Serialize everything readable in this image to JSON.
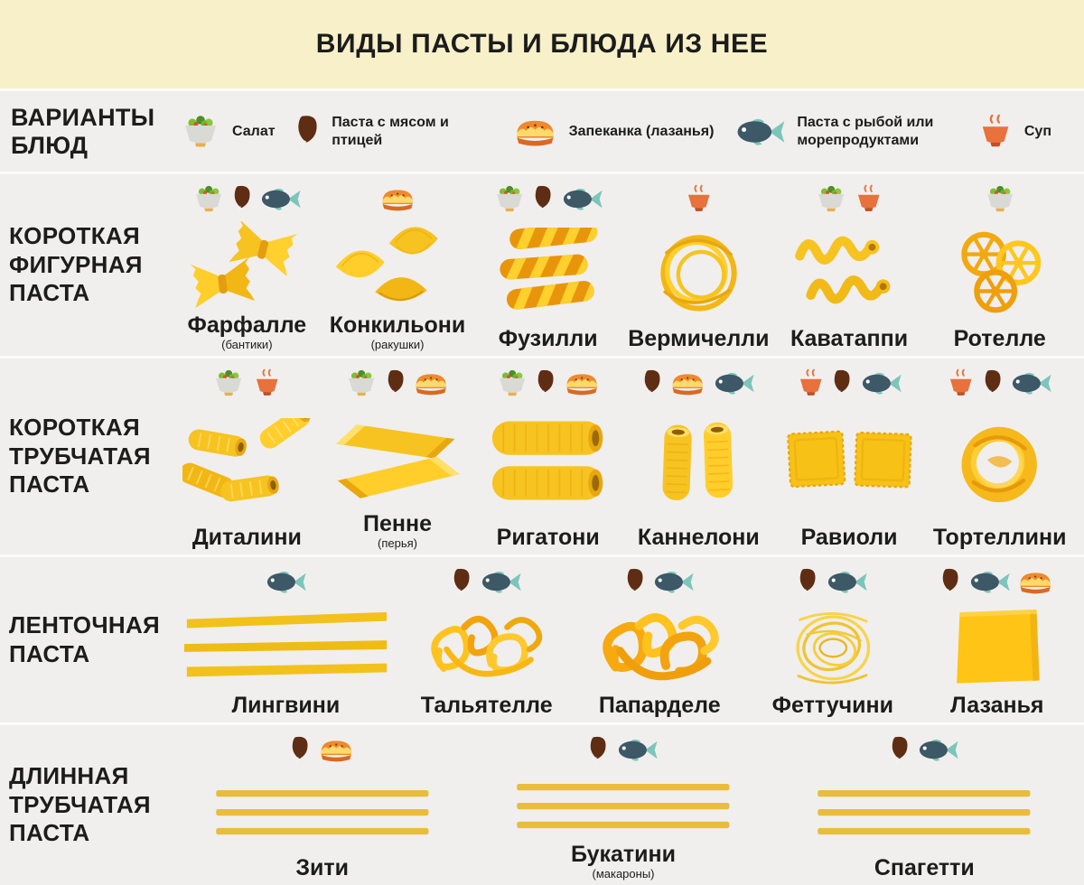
{
  "title": "ВИДЫ ПАСТЫ И БЛЮДА ИЗ НЕЕ",
  "legend": {
    "heading": "ВАРИАНТЫ БЛЮД",
    "items": [
      {
        "icon": "salad",
        "label": "Салат"
      },
      {
        "icon": "chicken",
        "label": "Паста с мясом и птицей"
      },
      {
        "icon": "pie",
        "label": "Запеканка (лазанья)"
      },
      {
        "icon": "fish",
        "label": "Паста с рыбой или морепродуктами"
      },
      {
        "icon": "soup",
        "label": "Суп"
      }
    ]
  },
  "rows": [
    {
      "category": "КОРОТКАЯ ФИГУРНАЯ ПАСТА",
      "items": [
        {
          "name": "Фарфалле",
          "subname": "(бантики)",
          "shape": "farfalle",
          "dishes": [
            "salad",
            "chicken",
            "fish"
          ]
        },
        {
          "name": "Конкильони",
          "subname": "(ракушки)",
          "shape": "conchiglioni",
          "dishes": [
            "pie"
          ]
        },
        {
          "name": "Фузилли",
          "shape": "fusilli",
          "dishes": [
            "salad",
            "chicken",
            "fish"
          ]
        },
        {
          "name": "Вермичелли",
          "shape": "vermicelli",
          "dishes": [
            "soup"
          ]
        },
        {
          "name": "Каватаппи",
          "shape": "cavatappi",
          "dishes": [
            "salad",
            "soup"
          ]
        },
        {
          "name": "Ротелле",
          "shape": "rotelle",
          "dishes": [
            "salad"
          ]
        }
      ]
    },
    {
      "category": "КОРОТКАЯ ТРУБЧАТАЯ ПАСТА",
      "items": [
        {
          "name": "Диталини",
          "shape": "ditalini",
          "dishes": [
            "salad",
            "soup"
          ]
        },
        {
          "name": "Пенне",
          "subname": "(перья)",
          "shape": "penne",
          "dishes": [
            "salad",
            "chicken",
            "pie"
          ]
        },
        {
          "name": "Ригатони",
          "shape": "rigatoni",
          "dishes": [
            "salad",
            "chicken",
            "pie"
          ]
        },
        {
          "name": "Каннелони",
          "shape": "cannelloni",
          "dishes": [
            "chicken",
            "pie",
            "fish"
          ]
        },
        {
          "name": "Равиоли",
          "shape": "ravioli",
          "dishes": [
            "soup",
            "chicken",
            "fish"
          ]
        },
        {
          "name": "Тортеллини",
          "shape": "tortellini",
          "dishes": [
            "soup",
            "chicken",
            "fish"
          ]
        }
      ]
    },
    {
      "category": "ЛЕНТОЧНАЯ ПАСТА",
      "items": [
        {
          "name": "Лингвини",
          "shape": "linguini",
          "dishes": [
            "fish"
          ]
        },
        {
          "name": "Тальятелле",
          "shape": "tagliatelle",
          "dishes": [
            "chicken",
            "fish"
          ]
        },
        {
          "name": "Папарделе",
          "shape": "pappardelle",
          "dishes": [
            "chicken",
            "fish"
          ]
        },
        {
          "name": "Феттучини",
          "shape": "fettuccine",
          "dishes": [
            "chicken",
            "fish"
          ]
        },
        {
          "name": "Лазанья",
          "shape": "lasagna",
          "dishes": [
            "chicken",
            "fish",
            "pie"
          ]
        }
      ]
    },
    {
      "category": "ДЛИННАЯ ТРУБЧАТАЯ ПАСТА",
      "items": [
        {
          "name": "Зити",
          "shape": "strips",
          "dishes": [
            "chicken",
            "pie"
          ]
        },
        {
          "name": "Букатини",
          "subname": "(макароны)",
          "shape": "strips",
          "dishes": [
            "chicken",
            "fish"
          ]
        },
        {
          "name": "Спагетти",
          "shape": "strips",
          "dishes": [
            "chicken",
            "fish"
          ]
        }
      ]
    }
  ],
  "colors": {
    "header_bg": "#F7F0C9",
    "band_bg": "#F0EFED",
    "page_bg": "#FBFBF8",
    "text": "#1C1C1C",
    "pasta_yellow": "#F6C321",
    "pasta_orange": "#E8A70F",
    "soup_orange": "#E8713C",
    "fish_body": "#3D5866",
    "fish_fins": "#7CC5BA",
    "chicken_brown": "#5E2D13"
  }
}
